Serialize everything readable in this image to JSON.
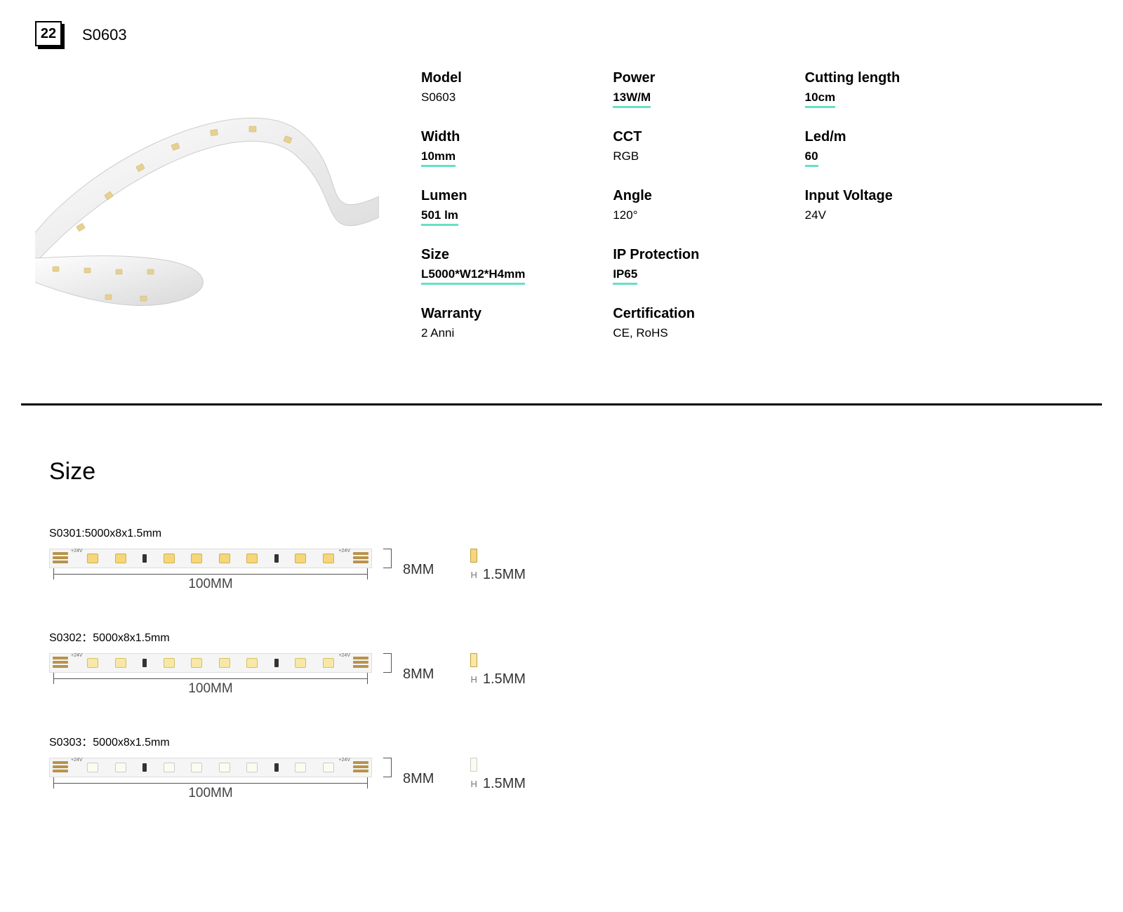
{
  "header": {
    "badge_number": "22",
    "title": "S0603"
  },
  "colors": {
    "accent_underline": "#67e0c4",
    "divider": "#000000",
    "led_warm": "#f5d67a",
    "led_day": "#f8e8a8",
    "led_cool": "#fbfbf0",
    "pad": "#b8934a",
    "strip_bg": "#f5f5f5"
  },
  "specs": [
    {
      "label": "Model",
      "value": "S0603",
      "underline": false
    },
    {
      "label": "Power",
      "value": "13W/M",
      "underline": true
    },
    {
      "label": "Cutting length",
      "value": "10cm",
      "underline": true
    },
    {
      "label": "Width",
      "value": "10mm",
      "underline": true
    },
    {
      "label": "CCT",
      "value": "RGB",
      "underline": false
    },
    {
      "label": "Led/m",
      "value": "60",
      "underline": true
    },
    {
      "label": "Lumen",
      "value": "501 lm",
      "underline": true
    },
    {
      "label": "Angle",
      "value": "120°",
      "underline": false
    },
    {
      "label": "Input Voltage",
      "value": "24V",
      "underline": false
    },
    {
      "label": "Size",
      "value": "L5000*W12*H4mm",
      "underline": true
    },
    {
      "label": "IP Protection",
      "value": "IP65",
      "underline": true
    },
    null,
    {
      "label": "Warranty",
      "value": "2 Anni",
      "underline": false
    },
    {
      "label": "Certification",
      "value": "CE, RoHS",
      "underline": false
    }
  ],
  "size_section": {
    "heading": "Size",
    "width_label": "100MM",
    "height_label": "8MM",
    "thickness_label": "1.5MM",
    "h_letter": "H",
    "volt_tag": "+24V",
    "items": [
      {
        "label": "S0301:5000x8x1.5mm",
        "led_variant": "warm"
      },
      {
        "label": "S0302：5000x8x1.5mm",
        "led_variant": "day"
      },
      {
        "label": "S0303：5000x8x1.5mm",
        "led_variant": "cool"
      }
    ]
  }
}
